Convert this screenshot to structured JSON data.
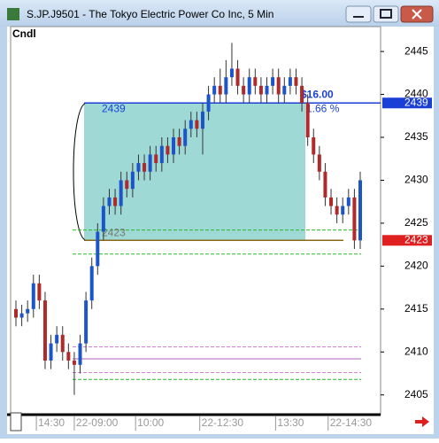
{
  "window_title": "S.JP.J9501 - The Tokyo Electric Power Co Inc, 5 Min",
  "chart_data": {
    "type": "candlestick",
    "label": "Cndl",
    "ylim": [
      2402.7,
      2447.9
    ],
    "yticks": [
      2405,
      2410,
      2415,
      2420,
      2425,
      2430,
      2435,
      2440,
      2445
    ],
    "xticks": [
      {
        "value": 3.5,
        "label": "14:30"
      },
      {
        "value": 10,
        "label": "22-09:00"
      },
      {
        "value": 20.5,
        "label": "10:00"
      },
      {
        "value": 31.5,
        "label": "22-12:30"
      },
      {
        "value": 44.5,
        "label": "13:30"
      },
      {
        "value": 53.5,
        "label": "22-14:30"
      }
    ],
    "up_color": "#1c55c8",
    "down_color": "#b02a2a",
    "open": [
      2415,
      2414,
      2414.5,
      2415,
      2418,
      2416,
      2409,
      2411,
      2412,
      2410,
      2409,
      2408.5,
      2411,
      2416,
      2420,
      2424,
      2427,
      2428,
      2427,
      2430,
      2429,
      2431,
      2432,
      2431,
      2433,
      2432,
      2434,
      2433,
      2435,
      2434,
      2436,
      2437,
      2436,
      2438,
      2440,
      2441,
      2440,
      2442,
      2443,
      2441,
      2440,
      2442,
      2441,
      2440,
      2441,
      2442,
      2440,
      2441,
      2442,
      2441,
      2439,
      2435,
      2433,
      2431,
      2428,
      2427,
      2426,
      2427,
      2428,
      2423
    ],
    "high": [
      2416,
      2415.5,
      2416,
      2419,
      2419,
      2417,
      2412,
      2413,
      2413,
      2411,
      2410,
      2412,
      2417,
      2421,
      2425,
      2428,
      2429,
      2429,
      2431,
      2431,
      2432,
      2433,
      2433,
      2434,
      2434,
      2435,
      2435,
      2436,
      2436,
      2437,
      2438,
      2438,
      2439,
      2441,
      2442,
      2443,
      2444,
      2446,
      2444,
      2442,
      2443,
      2443,
      2442,
      2442,
      2443,
      2443,
      2442,
      2443,
      2443,
      2442,
      2440,
      2436,
      2434,
      2432,
      2429,
      2428,
      2428,
      2429,
      2429,
      2431
    ],
    "low": [
      2413,
      2413,
      2413.5,
      2414,
      2415,
      2408,
      2408,
      2410,
      2409,
      2408,
      2405,
      2407.5,
      2410,
      2415,
      2419,
      2423,
      2426,
      2426,
      2426,
      2428,
      2428,
      2430,
      2430,
      2430,
      2431,
      2431,
      2432,
      2432,
      2433,
      2433,
      2435,
      2435,
      2433,
      2437,
      2439,
      2439,
      2439,
      2441,
      2440,
      2439,
      2439,
      2440,
      2439,
      2439,
      2440,
      2439,
      2439,
      2440,
      2440,
      2438,
      2434,
      2432,
      2430,
      2427,
      2426,
      2425,
      2425,
      2426,
      2422,
      2422
    ],
    "close": [
      2414,
      2414.5,
      2415,
      2418,
      2416,
      2409,
      2411,
      2412,
      2410,
      2409,
      2408.5,
      2411,
      2416,
      2420,
      2424,
      2427,
      2428,
      2427,
      2430,
      2429,
      2431,
      2432,
      2431,
      2433,
      2432,
      2434,
      2433,
      2435,
      2434,
      2436,
      2437,
      2436,
      2438,
      2440,
      2441,
      2440,
      2442,
      2443,
      2441,
      2440,
      2442,
      2441,
      2440,
      2441,
      2442,
      2440,
      2441,
      2442,
      2441,
      2439,
      2435,
      2433,
      2431,
      2428,
      2427,
      2426,
      2427,
      2428,
      2423,
      2430
    ],
    "levels": [
      {
        "value": 2439,
        "color": "#1a3fd6",
        "tag_color": "#1a3fd6"
      },
      {
        "value": 2423,
        "color": "#8a6a1a",
        "tag_color": "#e02020"
      }
    ],
    "zone_color": "#9fd9d6",
    "change_label": "$16.00",
    "percent_label": "1.66 %",
    "guides": [
      {
        "value": 2424.2,
        "color": "#2db82d",
        "dash": true
      },
      {
        "value": 2421.4,
        "color": "#2db82d",
        "dash": true
      },
      {
        "value": 2410.6,
        "color": "#d080d0",
        "dash": true
      },
      {
        "value": 2409.2,
        "color": "#b060c0",
        "dash": false
      },
      {
        "value": 2407.6,
        "color": "#d080d0",
        "dash": true
      },
      {
        "value": 2406.8,
        "color": "#2db82d",
        "dash": true
      }
    ]
  }
}
